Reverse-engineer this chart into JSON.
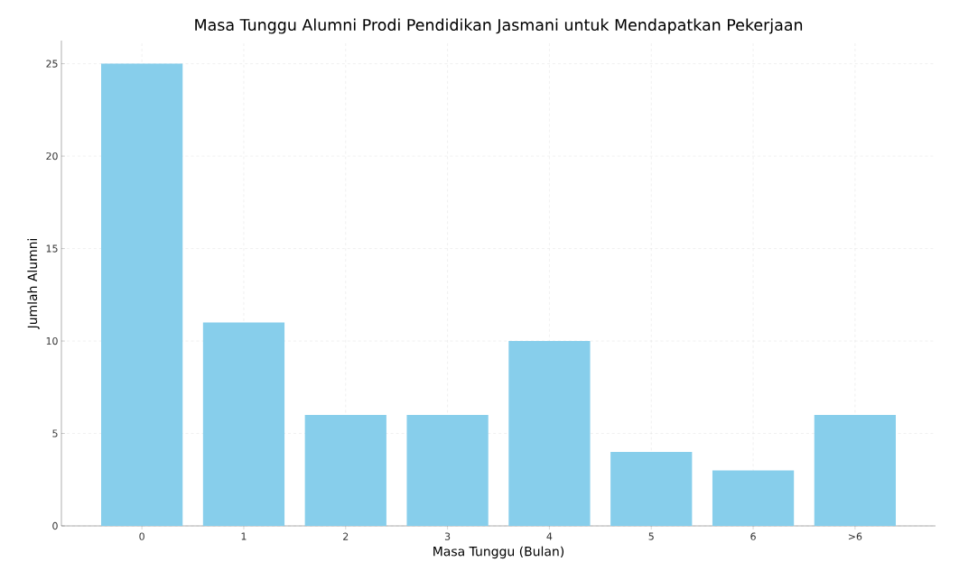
{
  "chart_data": {
    "type": "bar",
    "title": "Masa Tunggu Alumni Prodi Pendidikan Jasmani untuk Mendapatkan Pekerjaan",
    "xlabel": "Masa Tunggu (Bulan)",
    "ylabel": "Jumlah Alumni",
    "categories": [
      "0",
      "1",
      "2",
      "3",
      "4",
      "5",
      "6",
      ">6"
    ],
    "values": [
      25,
      11,
      6,
      6,
      10,
      4,
      3,
      6
    ],
    "color": "#87ceeb",
    "ylim": [
      0,
      26.25
    ],
    "yticks": [
      0,
      5,
      10,
      15,
      20,
      25
    ],
    "grid": true
  }
}
